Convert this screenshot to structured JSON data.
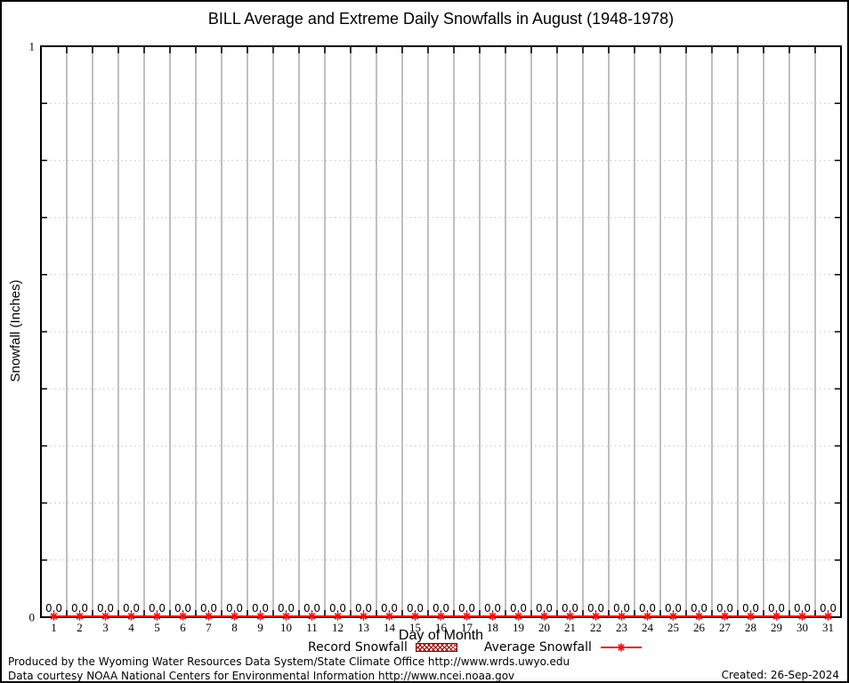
{
  "window": {
    "background": "#ffffff",
    "border_color": "#000000"
  },
  "chart_data": {
    "type": "line",
    "title": "BILL Average and Extreme Daily Snowfalls in August (1948-1978)",
    "xlabel": "Day of Month",
    "ylabel": "Snowfall (Inches)",
    "x": [
      1,
      2,
      3,
      4,
      5,
      6,
      7,
      8,
      9,
      10,
      11,
      12,
      13,
      14,
      15,
      16,
      17,
      18,
      19,
      20,
      21,
      22,
      23,
      24,
      25,
      26,
      27,
      28,
      29,
      30,
      31
    ],
    "xtick_labels": [
      "1",
      "2",
      "3",
      "4",
      "5",
      "6",
      "7",
      "8",
      "9",
      "10",
      "11",
      "12",
      "13",
      "14",
      "15",
      "16",
      "17",
      "18",
      "19",
      "20",
      "21",
      "22",
      "23",
      "24",
      "25",
      "26",
      "27",
      "28",
      "29",
      "30",
      "31"
    ],
    "series": [
      {
        "name": "Record Snowfall",
        "style": "hatched-bar",
        "color": "#8b0000",
        "values": [
          0,
          0,
          0,
          0,
          0,
          0,
          0,
          0,
          0,
          0,
          0,
          0,
          0,
          0,
          0,
          0,
          0,
          0,
          0,
          0,
          0,
          0,
          0,
          0,
          0,
          0,
          0,
          0,
          0,
          0,
          0
        ]
      },
      {
        "name": "Average Snowfall",
        "style": "line-with-star-marker",
        "color": "#ee1111",
        "values": [
          0,
          0,
          0,
          0,
          0,
          0,
          0,
          0,
          0,
          0,
          0,
          0,
          0,
          0,
          0,
          0,
          0,
          0,
          0,
          0,
          0,
          0,
          0,
          0,
          0,
          0,
          0,
          0,
          0,
          0,
          0
        ]
      }
    ],
    "value_labels": [
      "0.0",
      "0.0",
      "0.0",
      "0.0",
      "0.0",
      "0.0",
      "0.0",
      "0.0",
      "0.0",
      "0.0",
      "0.0",
      "0.0",
      "0.0",
      "0.0",
      "0.0",
      "0.0",
      "0.0",
      "0.0",
      "0.0",
      "0.0",
      "0.0",
      "0.0",
      "0.0",
      "0.0",
      "0.0",
      "0.0",
      "0.0",
      "0.0",
      "0.0",
      "0.0",
      "0.0"
    ],
    "ylim": [
      0,
      1
    ],
    "xlim": [
      0.5,
      31.5
    ],
    "ytick_labeled": [
      {
        "value": 0,
        "label": "0"
      },
      {
        "value": 1,
        "label": "1"
      }
    ],
    "ytick_minor": [
      0.1,
      0.2,
      0.3,
      0.4,
      0.5,
      0.6,
      0.7,
      0.8,
      0.9
    ],
    "grid": {
      "vertical": true,
      "horizontal_dotted": true,
      "color": "#c0c0c0"
    },
    "legend_position": "bottom-center"
  },
  "legend": {
    "items": [
      {
        "label": "Record Snowfall",
        "swatch": "hatched-box",
        "color": "#8b0000"
      },
      {
        "label": "Average Snowfall",
        "swatch": "line-with-star-marker",
        "color": "#ee1111"
      }
    ]
  },
  "footer": {
    "line1": "Produced by the Wyoming Water Resources Data System/State Climate Office http://www.wrds.uwyo.edu",
    "line2": "Data courtesy NOAA National Centers for Environmental Information http://www.ncei.noaa.gov",
    "created": "Created: 26-Sep-2024"
  }
}
